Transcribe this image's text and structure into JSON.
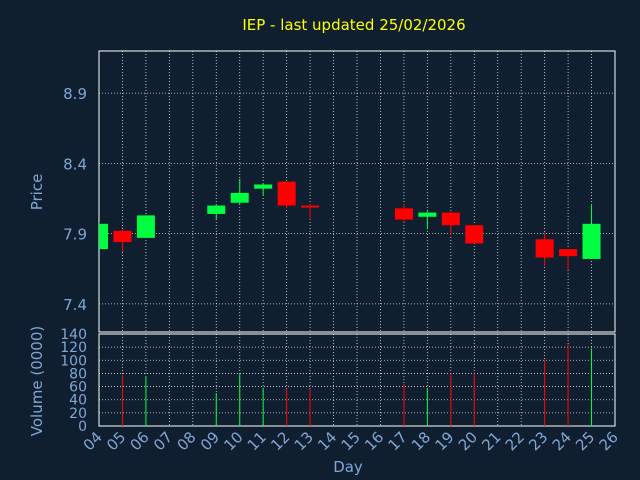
{
  "colors": {
    "background": "#0f1f2f",
    "plot_background": "#0f1f2f",
    "frame": "#ffffff",
    "grid": "#ffffff",
    "title": "#ffff00",
    "axis_text": "#7fa7d6",
    "up": "#00ff40",
    "down": "#ff0000"
  },
  "chart_data": [
    {
      "type": "candlestick",
      "title": "IEP - last updated 25/02/2026",
      "ylabel": "Price",
      "ylim": [
        7.2,
        9.2
      ],
      "yticks": [
        7.4,
        7.9,
        8.4,
        8.9
      ],
      "ytick_labels": [
        "7.4",
        "7.9",
        "8.4",
        "8.9"
      ],
      "grid": true,
      "x_day_labels": [
        "04",
        "05",
        "06",
        "07",
        "08",
        "09",
        "10",
        "11",
        "12",
        "13",
        "14",
        "15",
        "16",
        "17",
        "18",
        "19",
        "20",
        "21",
        "22",
        "23",
        "24",
        "25",
        "26"
      ],
      "candles": [
        {
          "day": 4,
          "open": 7.79,
          "close": 7.97,
          "high": 7.98,
          "low": 7.79
        },
        {
          "day": 5,
          "open": 7.92,
          "close": 7.84,
          "high": 7.93,
          "low": 7.77
        },
        {
          "day": 6,
          "open": 7.87,
          "close": 8.03,
          "high": 8.03,
          "low": 7.87
        },
        {
          "day": 9,
          "open": 8.04,
          "close": 8.1,
          "high": 8.11,
          "low": 8.0
        },
        {
          "day": 10,
          "open": 8.12,
          "close": 8.19,
          "high": 8.29,
          "low": 8.11
        },
        {
          "day": 11,
          "open": 8.22,
          "close": 8.25,
          "high": 8.26,
          "low": 8.17
        },
        {
          "day": 12,
          "open": 8.27,
          "close": 8.1,
          "high": 8.27,
          "low": 8.08
        },
        {
          "day": 13,
          "open": 8.1,
          "close": 8.09,
          "high": 8.11,
          "low": 8.0
        },
        {
          "day": 17,
          "open": 8.08,
          "close": 8.0,
          "high": 8.11,
          "low": 7.98
        },
        {
          "day": 18,
          "open": 8.02,
          "close": 8.05,
          "high": 8.06,
          "low": 7.93
        },
        {
          "day": 19,
          "open": 8.05,
          "close": 7.96,
          "high": 8.05,
          "low": 7.89
        },
        {
          "day": 20,
          "open": 7.96,
          "close": 7.83,
          "high": 7.96,
          "low": 7.83
        },
        {
          "day": 23,
          "open": 7.86,
          "close": 7.73,
          "high": 7.91,
          "low": 7.67
        },
        {
          "day": 24,
          "open": 7.79,
          "close": 7.74,
          "high": 7.79,
          "low": 7.64
        },
        {
          "day": 25,
          "open": 7.72,
          "close": 7.97,
          "high": 8.11,
          "low": 7.72
        }
      ]
    },
    {
      "type": "bar",
      "ylabel": "Volume (0000)",
      "xlabel": "Day",
      "ylim": [
        0,
        140
      ],
      "yticks": [
        0,
        20,
        40,
        60,
        80,
        100,
        120,
        140
      ],
      "ytick_labels": [
        "0",
        "20",
        "40",
        "60",
        "80",
        "100",
        "120",
        "140"
      ],
      "grid": true,
      "bars": [
        {
          "day": 5,
          "value": 78,
          "direction": "down"
        },
        {
          "day": 6,
          "value": 75,
          "direction": "up"
        },
        {
          "day": 9,
          "value": 50,
          "direction": "up"
        },
        {
          "day": 10,
          "value": 80,
          "direction": "up"
        },
        {
          "day": 11,
          "value": 58,
          "direction": "up"
        },
        {
          "day": 12,
          "value": 57,
          "direction": "down"
        },
        {
          "day": 13,
          "value": 57,
          "direction": "down"
        },
        {
          "day": 17,
          "value": 64,
          "direction": "down"
        },
        {
          "day": 18,
          "value": 57,
          "direction": "up"
        },
        {
          "day": 19,
          "value": 80,
          "direction": "down"
        },
        {
          "day": 20,
          "value": 80,
          "direction": "down"
        },
        {
          "day": 23,
          "value": 101,
          "direction": "down"
        },
        {
          "day": 24,
          "value": 124,
          "direction": "down"
        },
        {
          "day": 25,
          "value": 118,
          "direction": "up"
        }
      ]
    }
  ]
}
